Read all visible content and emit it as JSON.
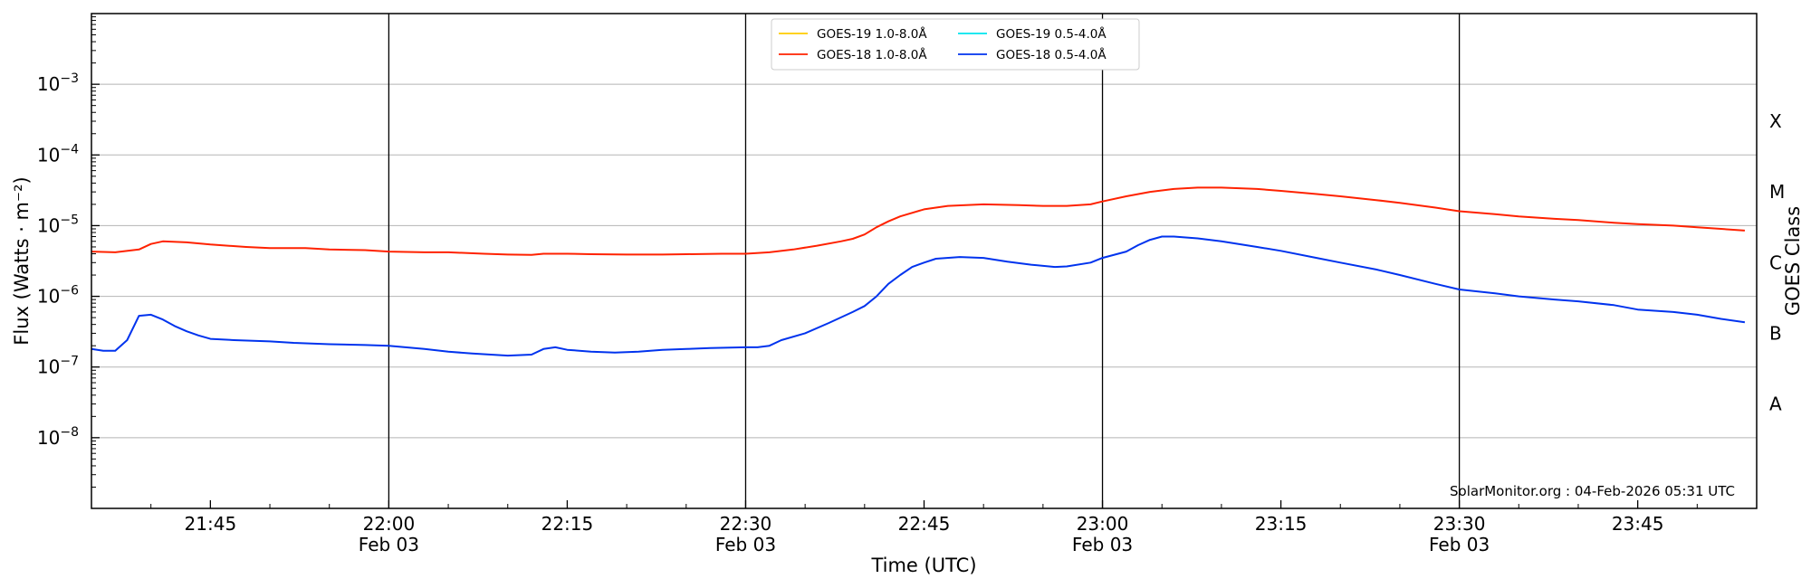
{
  "chart_data": {
    "type": "line",
    "title": "",
    "xlabel": "Time (UTC)",
    "ylabel": "Flux (Watts · m⁻²)",
    "y2label": "GOES Class",
    "yscale": "log",
    "xlim": [
      "21:35",
      "23:55"
    ],
    "ylim": [
      1e-09,
      0.01
    ],
    "grid": "horizontal at decades",
    "legend_position": "top-center",
    "x_ticks": [
      {
        "time": "21:45",
        "label": "21:45",
        "sub": "",
        "major": false
      },
      {
        "time": "22:00",
        "label": "22:00",
        "sub": "Feb 03",
        "major": true
      },
      {
        "time": "22:15",
        "label": "22:15",
        "sub": "",
        "major": false
      },
      {
        "time": "22:30",
        "label": "22:30",
        "sub": "Feb 03",
        "major": true
      },
      {
        "time": "22:45",
        "label": "22:45",
        "sub": "",
        "major": false
      },
      {
        "time": "23:00",
        "label": "23:00",
        "sub": "Feb 03",
        "major": true
      },
      {
        "time": "23:15",
        "label": "23:15",
        "sub": "",
        "major": false
      },
      {
        "time": "23:30",
        "label": "23:30",
        "sub": "Feb 03",
        "major": true
      },
      {
        "time": "23:45",
        "label": "23:45",
        "sub": "",
        "major": false
      }
    ],
    "y_ticks": [
      {
        "value": 0.001,
        "base": "10",
        "exp": "−3"
      },
      {
        "value": 0.0001,
        "base": "10",
        "exp": "−4"
      },
      {
        "value": 1e-05,
        "base": "10",
        "exp": "−5"
      },
      {
        "value": 1e-06,
        "base": "10",
        "exp": "−6"
      },
      {
        "value": 1e-07,
        "base": "10",
        "exp": "−7"
      },
      {
        "value": 1e-08,
        "base": "10",
        "exp": "−8"
      }
    ],
    "goes_classes": [
      {
        "label": "X",
        "value": 0.0003
      },
      {
        "label": "M",
        "value": 3e-05
      },
      {
        "label": "C",
        "value": 3e-06
      },
      {
        "label": "B",
        "value": 3e-07
      },
      {
        "label": "A",
        "value": 3e-08
      }
    ],
    "credit": "SolarMonitor.org : 04-Feb-2026 05:31 UTC",
    "series": [
      {
        "name": "GOES-19 1.0-8.0Å",
        "color": "#ffcc00",
        "points": []
      },
      {
        "name": "GOES-19 0.5-4.0Å",
        "color": "#00e5ee",
        "points": []
      },
      {
        "name": "GOES-18 1.0-8.0Å",
        "color": "#ff2200",
        "points": [
          [
            "21:35",
            4.3e-06
          ],
          [
            "21:37",
            4.2e-06
          ],
          [
            "21:39",
            4.6e-06
          ],
          [
            "21:40",
            5.5e-06
          ],
          [
            "21:41",
            6e-06
          ],
          [
            "21:43",
            5.8e-06
          ],
          [
            "21:45",
            5.4e-06
          ],
          [
            "21:48",
            5e-06
          ],
          [
            "21:50",
            4.8e-06
          ],
          [
            "21:53",
            4.8e-06
          ],
          [
            "21:55",
            4.6e-06
          ],
          [
            "21:58",
            4.5e-06
          ],
          [
            "22:00",
            4.3e-06
          ],
          [
            "22:03",
            4.2e-06
          ],
          [
            "22:05",
            4.2e-06
          ],
          [
            "22:08",
            4e-06
          ],
          [
            "22:10",
            3.9e-06
          ],
          [
            "22:12",
            3.85e-06
          ],
          [
            "22:13",
            4e-06
          ],
          [
            "22:15",
            4e-06
          ],
          [
            "22:17",
            3.95e-06
          ],
          [
            "22:20",
            3.9e-06
          ],
          [
            "22:23",
            3.9e-06
          ],
          [
            "22:25",
            3.95e-06
          ],
          [
            "22:28",
            4e-06
          ],
          [
            "22:30",
            4e-06
          ],
          [
            "22:32",
            4.2e-06
          ],
          [
            "22:34",
            4.6e-06
          ],
          [
            "22:36",
            5.2e-06
          ],
          [
            "22:38",
            6e-06
          ],
          [
            "22:39",
            6.5e-06
          ],
          [
            "22:40",
            7.5e-06
          ],
          [
            "22:41",
            9.5e-06
          ],
          [
            "22:42",
            1.15e-05
          ],
          [
            "22:43",
            1.35e-05
          ],
          [
            "22:45",
            1.7e-05
          ],
          [
            "22:47",
            1.9e-05
          ],
          [
            "22:50",
            2e-05
          ],
          [
            "22:53",
            1.95e-05
          ],
          [
            "22:55",
            1.9e-05
          ],
          [
            "22:57",
            1.9e-05
          ],
          [
            "22:59",
            2e-05
          ],
          [
            "23:00",
            2.2e-05
          ],
          [
            "23:02",
            2.6e-05
          ],
          [
            "23:04",
            3e-05
          ],
          [
            "23:06",
            3.3e-05
          ],
          [
            "23:08",
            3.45e-05
          ],
          [
            "23:10",
            3.45e-05
          ],
          [
            "23:13",
            3.3e-05
          ],
          [
            "23:15",
            3.1e-05
          ],
          [
            "23:18",
            2.8e-05
          ],
          [
            "23:20",
            2.6e-05
          ],
          [
            "23:23",
            2.3e-05
          ],
          [
            "23:25",
            2.1e-05
          ],
          [
            "23:28",
            1.8e-05
          ],
          [
            "23:30",
            1.6e-05
          ],
          [
            "23:33",
            1.45e-05
          ],
          [
            "23:35",
            1.35e-05
          ],
          [
            "23:38",
            1.25e-05
          ],
          [
            "23:40",
            1.2e-05
          ],
          [
            "23:43",
            1.1e-05
          ],
          [
            "23:45",
            1.05e-05
          ],
          [
            "23:48",
            1e-05
          ],
          [
            "23:50",
            9.5e-06
          ],
          [
            "23:52",
            9e-06
          ],
          [
            "23:54",
            8.5e-06
          ]
        ]
      },
      {
        "name": "GOES-18 0.5-4.0Å",
        "color": "#0033ee",
        "points": [
          [
            "21:35",
            1.8e-07
          ],
          [
            "21:36",
            1.7e-07
          ],
          [
            "21:37",
            1.7e-07
          ],
          [
            "21:38",
            2.4e-07
          ],
          [
            "21:39",
            5.3e-07
          ],
          [
            "21:40",
            5.5e-07
          ],
          [
            "21:41",
            4.7e-07
          ],
          [
            "21:42",
            3.8e-07
          ],
          [
            "21:43",
            3.2e-07
          ],
          [
            "21:44",
            2.8e-07
          ],
          [
            "21:45",
            2.5e-07
          ],
          [
            "21:47",
            2.4e-07
          ],
          [
            "21:50",
            2.3e-07
          ],
          [
            "21:52",
            2.2e-07
          ],
          [
            "21:55",
            2.1e-07
          ],
          [
            "21:58",
            2.05e-07
          ],
          [
            "22:00",
            2e-07
          ],
          [
            "22:03",
            1.8e-07
          ],
          [
            "22:05",
            1.65e-07
          ],
          [
            "22:07",
            1.55e-07
          ],
          [
            "22:10",
            1.45e-07
          ],
          [
            "22:12",
            1.5e-07
          ],
          [
            "22:13",
            1.8e-07
          ],
          [
            "22:14",
            1.9e-07
          ],
          [
            "22:15",
            1.75e-07
          ],
          [
            "22:17",
            1.65e-07
          ],
          [
            "22:19",
            1.6e-07
          ],
          [
            "22:21",
            1.65e-07
          ],
          [
            "22:23",
            1.75e-07
          ],
          [
            "22:25",
            1.8e-07
          ],
          [
            "22:27",
            1.85e-07
          ],
          [
            "22:30",
            1.9e-07
          ],
          [
            "22:31",
            1.9e-07
          ],
          [
            "22:32",
            2e-07
          ],
          [
            "22:33",
            2.4e-07
          ],
          [
            "22:35",
            3e-07
          ],
          [
            "22:37",
            4.2e-07
          ],
          [
            "22:39",
            6e-07
          ],
          [
            "22:40",
            7.3e-07
          ],
          [
            "22:41",
            1e-06
          ],
          [
            "22:42",
            1.5e-06
          ],
          [
            "22:43",
            2e-06
          ],
          [
            "22:44",
            2.6e-06
          ],
          [
            "22:45",
            3e-06
          ],
          [
            "22:46",
            3.4e-06
          ],
          [
            "22:48",
            3.6e-06
          ],
          [
            "22:50",
            3.5e-06
          ],
          [
            "22:52",
            3.1e-06
          ],
          [
            "22:54",
            2.8e-06
          ],
          [
            "22:56",
            2.6e-06
          ],
          [
            "22:57",
            2.65e-06
          ],
          [
            "22:59",
            3e-06
          ],
          [
            "23:00",
            3.5e-06
          ],
          [
            "23:02",
            4.3e-06
          ],
          [
            "23:03",
            5.3e-06
          ],
          [
            "23:04",
            6.3e-06
          ],
          [
            "23:05",
            7e-06
          ],
          [
            "23:06",
            7e-06
          ],
          [
            "23:08",
            6.6e-06
          ],
          [
            "23:10",
            6e-06
          ],
          [
            "23:13",
            5e-06
          ],
          [
            "23:15",
            4.4e-06
          ],
          [
            "23:18",
            3.5e-06
          ],
          [
            "23:20",
            3e-06
          ],
          [
            "23:23",
            2.4e-06
          ],
          [
            "23:25",
            2e-06
          ],
          [
            "23:28",
            1.5e-06
          ],
          [
            "23:30",
            1.25e-06
          ],
          [
            "23:33",
            1.1e-06
          ],
          [
            "23:35",
            1e-06
          ],
          [
            "23:38",
            9e-07
          ],
          [
            "23:40",
            8.5e-07
          ],
          [
            "23:43",
            7.5e-07
          ],
          [
            "23:45",
            6.5e-07
          ],
          [
            "23:48",
            6e-07
          ],
          [
            "23:50",
            5.5e-07
          ],
          [
            "23:52",
            4.8e-07
          ],
          [
            "23:54",
            4.3e-07
          ]
        ]
      }
    ]
  }
}
